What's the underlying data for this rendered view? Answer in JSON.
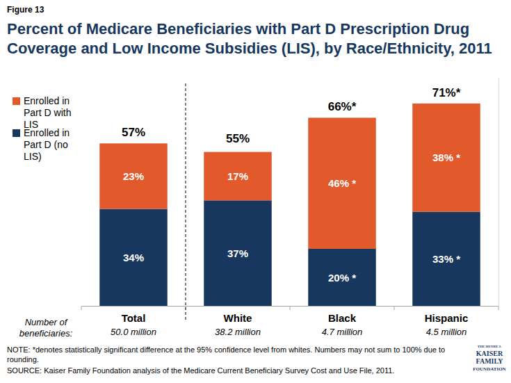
{
  "chart_data": {
    "type": "bar",
    "stacked": true,
    "data_labels": true,
    "tick_labels": "x",
    "legend": "top-left",
    "figure_label": "Figure 13",
    "title": "Percent of Medicare Beneficiaries with Part D Prescription Drug Coverage and Low Income Subsidies (LIS), by Race/Ethnicity, 2011",
    "categories": [
      "Total",
      "White",
      "Black",
      "Hispanic"
    ],
    "beneficiaries_label": [
      "Number of",
      "beneficiaries:"
    ],
    "beneficiaries": [
      "50.0 million",
      "38.2 million",
      "4.7 million",
      "4.5 million"
    ],
    "series": [
      {
        "name": "Enrolled in Part D (no LIS)",
        "color": "#17375e",
        "values": [
          34,
          37,
          20,
          33
        ],
        "value_labels": [
          "34%",
          "37%",
          "20% *",
          "33% *"
        ]
      },
      {
        "name": "Enrolled in Part D with LIS",
        "color": "#e2592b",
        "values": [
          23,
          17,
          46,
          38
        ],
        "value_labels": [
          "23%",
          "17%",
          "46% *",
          "38% *"
        ]
      }
    ],
    "totals": [
      57,
      55,
      66,
      71
    ],
    "total_labels": [
      "57%",
      "55%",
      "66%*",
      "71%*"
    ],
    "ylim": [
      0,
      80
    ],
    "note": "NOTE: *denotes statistically significant difference at the 95% confidence level from whites. Numbers may not sum to 100% due to rounding.",
    "source": "SOURCE: Kaiser Family Foundation analysis of the Medicare Current Beneficiary Survey Cost and Use File, 2011.",
    "logo": [
      "THE HENRY J.",
      "KAISER",
      "FAMILY",
      "FOUNDATION"
    ]
  }
}
